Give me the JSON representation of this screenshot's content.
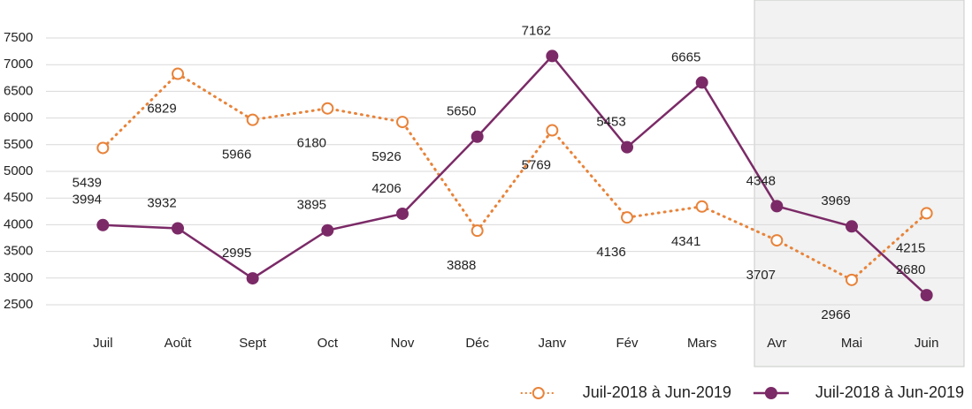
{
  "chart_data": {
    "type": "line",
    "categories": [
      "Juil",
      "Août",
      "Sept",
      "Oct",
      "Nov",
      "Déc",
      "Janv",
      "Fév",
      "Mars",
      "Avr",
      "Mai",
      "Juin"
    ],
    "series": [
      {
        "name": "Juil-2018 à Jun-2019",
        "color": "#e8833a",
        "style": "dotted",
        "marker": "hollow",
        "values": [
          5439,
          6829,
          5966,
          6180,
          5926,
          3888,
          5769,
          4136,
          4341,
          3707,
          2966,
          4215
        ]
      },
      {
        "name": "Juil-2018 à Jun-2019",
        "color": "#7b2a67",
        "style": "solid",
        "marker": "filled",
        "values": [
          3994,
          3932,
          2995,
          3895,
          4206,
          5650,
          7162,
          5453,
          6665,
          4348,
          3969,
          2680
        ]
      }
    ],
    "ylim": [
      2500,
      7500
    ],
    "yticks": [
      2500,
      3000,
      3500,
      4000,
      4500,
      5000,
      5500,
      6000,
      6500,
      7000,
      7500
    ],
    "grid": true,
    "legend": "bottom-right"
  }
}
